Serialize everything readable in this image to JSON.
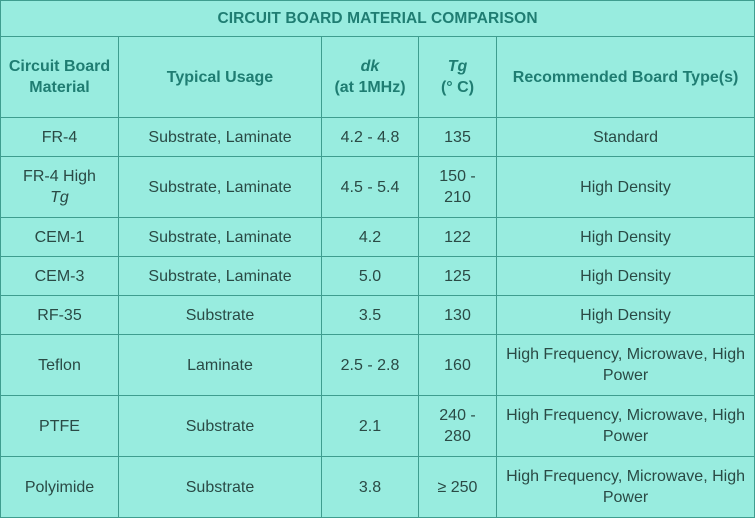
{
  "title": "CIRCUIT BOARD MATERIAL COMPARISON",
  "headers": {
    "material": "Circuit Board Material",
    "usage": "Typical Usage",
    "dk_symbol": "dk",
    "dk_unit": "(at 1MHz)",
    "tg_symbol": "Tg",
    "tg_unit": "(° C)",
    "board_type": "Recommended Board Type(s)"
  },
  "rows": [
    {
      "material": "FR-4",
      "usage": "Substrate, Laminate",
      "dk": "4.2 - 4.8",
      "tg": "135",
      "board_type": "Standard"
    },
    {
      "material_line1": "FR-4 High",
      "material_line2": "Tg",
      "usage": "Substrate, Laminate",
      "dk": "4.5 - 5.4",
      "tg": "150 - 210",
      "board_type": "High Density"
    },
    {
      "material": "CEM-1",
      "usage": "Substrate, Laminate",
      "dk": "4.2",
      "tg": "122",
      "board_type": "High Density"
    },
    {
      "material": "CEM-3",
      "usage": "Substrate, Laminate",
      "dk": "5.0",
      "tg": "125",
      "board_type": "High Density"
    },
    {
      "material": "RF-35",
      "usage": "Substrate",
      "dk": "3.5",
      "tg": "130",
      "board_type": "High Density"
    },
    {
      "material": "Teflon",
      "usage": "Laminate",
      "dk": "2.5 - 2.8",
      "tg": "160",
      "board_type": "High Frequency, Microwave, High Power"
    },
    {
      "material": "PTFE",
      "usage": "Substrate",
      "dk": "2.1",
      "tg": "240 - 280",
      "board_type": "High Frequency, Microwave, High Power"
    },
    {
      "material": "Polyimide",
      "usage": "Substrate",
      "dk": "3.8",
      "tg": "≥ 250",
      "board_type": "High Frequency, Microwave, High Power"
    }
  ]
}
